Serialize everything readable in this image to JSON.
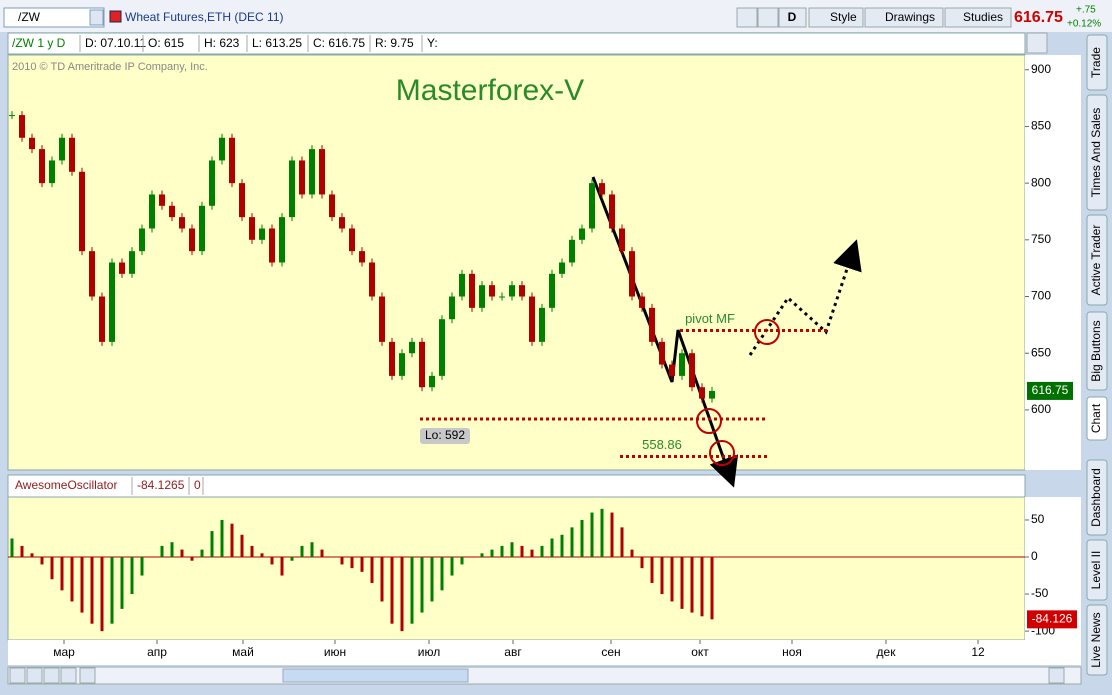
{
  "toolbar": {
    "symbol": "/ZW",
    "instrument": "Wheat Futures,ETH (DEC 11)",
    "buttons": [
      "D",
      "Style",
      "Drawings",
      "Studies"
    ],
    "last": "616.75",
    "change": "+.75",
    "change_pct": "+0.12%"
  },
  "info_bar": [
    "/ZW 1 y D",
    "D: 07.10.11",
    "O: 615",
    "H: 623",
    "L: 613.25",
    "C: 616.75",
    "R: 9.75",
    "Y:"
  ],
  "copyright": "2010 © TD Ameritrade IP Company, Inc.",
  "side_tabs": [
    "Trade",
    "Times And Sales",
    "Active Trader",
    "Big Buttons",
    "Chart",
    "Dashboard",
    "Level II",
    "Live News"
  ],
  "chart_data": [
    {
      "type": "candlestick",
      "title": "Masterforex-V",
      "values": [
        860,
        840,
        830,
        800,
        820,
        840,
        810,
        740,
        700,
        660,
        730,
        720,
        740,
        760,
        790,
        780,
        770,
        760,
        740,
        780,
        820,
        840,
        800,
        770,
        750,
        760,
        730,
        770,
        820,
        790,
        830,
        790,
        770,
        760,
        740,
        730,
        700,
        660,
        630,
        650,
        660,
        620,
        630,
        680,
        700,
        720,
        690,
        710,
        700,
        700,
        710,
        700,
        660,
        690,
        720,
        730,
        750,
        760,
        800,
        790,
        760,
        740,
        700,
        690,
        660,
        640,
        630,
        650,
        620,
        610,
        616.75
      ],
      "color_up": "#008000",
      "color_down": "#b00000",
      "ylim": [
        547,
        913
      ],
      "yticks": [
        600,
        650,
        700,
        750,
        800,
        850,
        900
      ],
      "xlim": [
        -0.4,
        101.3
      ],
      "xticks": [
        {
          "value": 5.2,
          "label": "мар"
        },
        {
          "value": 14.5,
          "label": "апр"
        },
        {
          "value": 23.1,
          "label": "май"
        },
        {
          "value": 32.3,
          "label": "июн"
        },
        {
          "value": 41.7,
          "label": "июл"
        },
        {
          "value": 50.1,
          "label": "авг"
        },
        {
          "value": 59.9,
          "label": "сен"
        },
        {
          "value": 68.8,
          "label": "окт"
        },
        {
          "value": 78,
          "label": "ноя"
        },
        {
          "value": 87.4,
          "label": "дек"
        },
        {
          "value": 96.6,
          "label": "12"
        }
      ],
      "last_label": "616.75",
      "annotations": [
        {
          "label": "Lo: 592",
          "value": 592
        },
        {
          "label": "pivot MF",
          "value": 670
        },
        {
          "label": "558.86",
          "value": 558.86
        }
      ]
    },
    {
      "type": "bar",
      "title": "AwesomeOscillator",
      "value_label": "-84.1265",
      "zero_label": "0",
      "values": [
        25,
        15,
        5,
        -10,
        -30,
        -45,
        -60,
        -75,
        -90,
        -100,
        -90,
        -70,
        -50,
        -25,
        0,
        15,
        20,
        10,
        -5,
        10,
        35,
        50,
        45,
        30,
        15,
        5,
        -10,
        -25,
        -5,
        15,
        20,
        10,
        0,
        -10,
        -15,
        -20,
        -35,
        -60,
        -90,
        -100,
        -90,
        -75,
        -60,
        -45,
        -25,
        -10,
        0,
        5,
        10,
        15,
        20,
        15,
        10,
        15,
        25,
        30,
        40,
        50,
        60,
        65,
        60,
        40,
        10,
        -15,
        -35,
        -50,
        -60,
        -70,
        -75,
        -80,
        -84.1265
      ],
      "color_up": "#008000",
      "color_down": "#b00000",
      "ylim": [
        -112,
        81
      ],
      "yticks": [
        50,
        0,
        -50,
        -100
      ],
      "last_label": "-84.126"
    }
  ]
}
